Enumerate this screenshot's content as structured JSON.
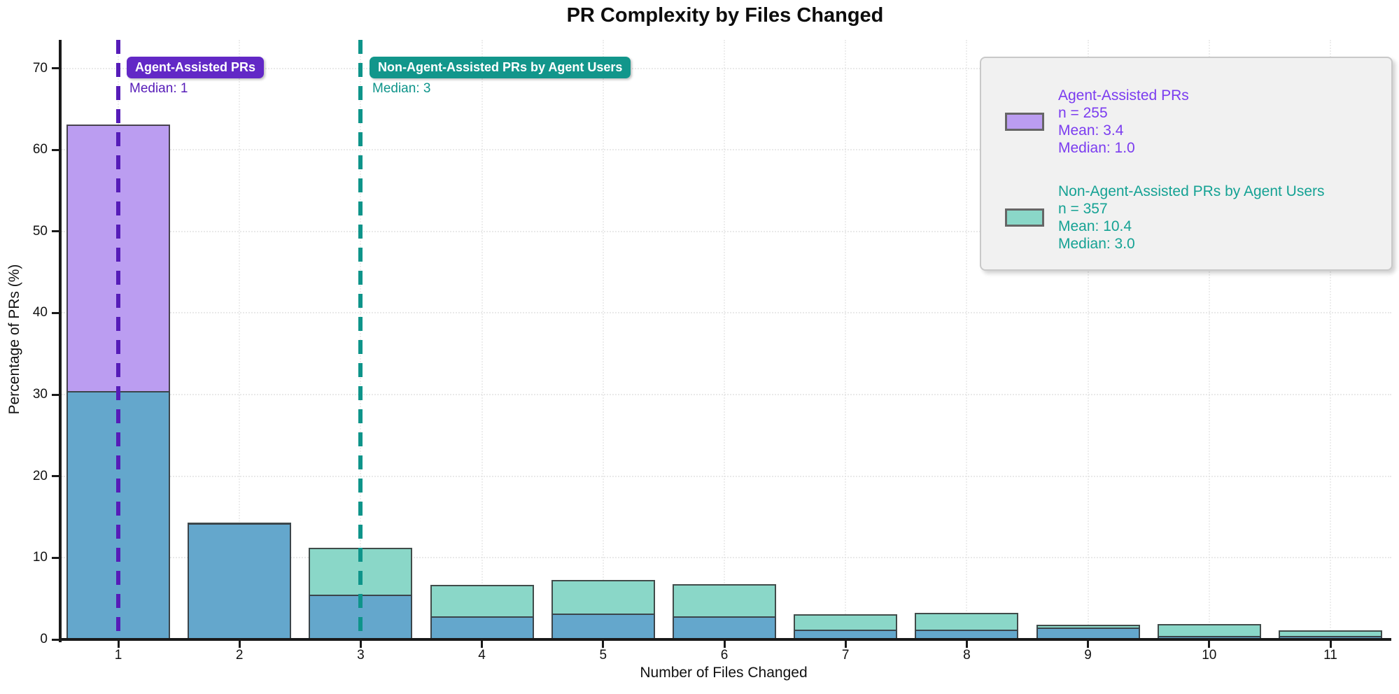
{
  "figure": {
    "title": "PR Complexity by Files Changed",
    "xlabel": "Number of Files Changed",
    "ylabel": "Percentage of PRs (%)"
  },
  "annotations": {
    "agent": {
      "badge": "Agent-Assisted PRs",
      "median_label": "Median: 1"
    },
    "non_agent": {
      "badge": "Non-Agent-Assisted PRs by Agent Users",
      "median_label": "Median: 3"
    }
  },
  "legend": {
    "entries": [
      {
        "swatch_color": "#bb9df1",
        "text_color": "#7b3cf0",
        "lines": [
          "Agent-Assisted PRs",
          "n = 255",
          "Mean: 3.4",
          "Median: 1.0"
        ]
      },
      {
        "swatch_color": "#8ad7c8",
        "text_color": "#15a294",
        "lines": [
          "Non-Agent-Assisted PRs by Agent Users",
          "n = 357",
          "Mean: 10.4",
          "Median: 3.0"
        ]
      }
    ]
  },
  "chart_data": {
    "type": "bar",
    "title": "PR Complexity by Files Changed",
    "xlabel": "Number of Files Changed",
    "ylabel": "Percentage of PRs (%)",
    "x": [
      1,
      2,
      3,
      4,
      5,
      6,
      7,
      8,
      9,
      10,
      11
    ],
    "series": [
      {
        "name": "Agent-Assisted PRs",
        "n": 255,
        "mean": 3.4,
        "median": 1.0,
        "color": "#bb9df1",
        "values": [
          63.1,
          14.2,
          5.5,
          2.8,
          3.2,
          2.8,
          1.2,
          1.2,
          1.5,
          0.4,
          0.4
        ]
      },
      {
        "name": "Non-Agent-Assisted PRs by Agent Users",
        "n": 357,
        "mean": 10.4,
        "median": 3.0,
        "color": "#8ad7c8",
        "values": [
          30.4,
          14.3,
          11.2,
          6.7,
          7.3,
          6.8,
          3.1,
          3.3,
          1.8,
          1.9,
          1.1
        ]
      }
    ],
    "overlap_color": "#64a7cc",
    "bar_edge_color": "#343434",
    "ylim": [
      0,
      73.5
    ],
    "yticks": [
      0,
      10,
      20,
      30,
      40,
      50,
      60,
      70
    ],
    "grid": true,
    "legend_position": "upper right",
    "median_lines": [
      {
        "x": 1,
        "color": "#561cb8",
        "badge_bg": "#6228c6",
        "label": "Agent-Assisted PRs",
        "sublabel": "Median: 1"
      },
      {
        "x": 3,
        "color": "#0e948a",
        "badge_bg": "#12968b",
        "label": "Non-Agent-Assisted PRs by Agent Users",
        "sublabel": "Median: 3"
      }
    ]
  }
}
